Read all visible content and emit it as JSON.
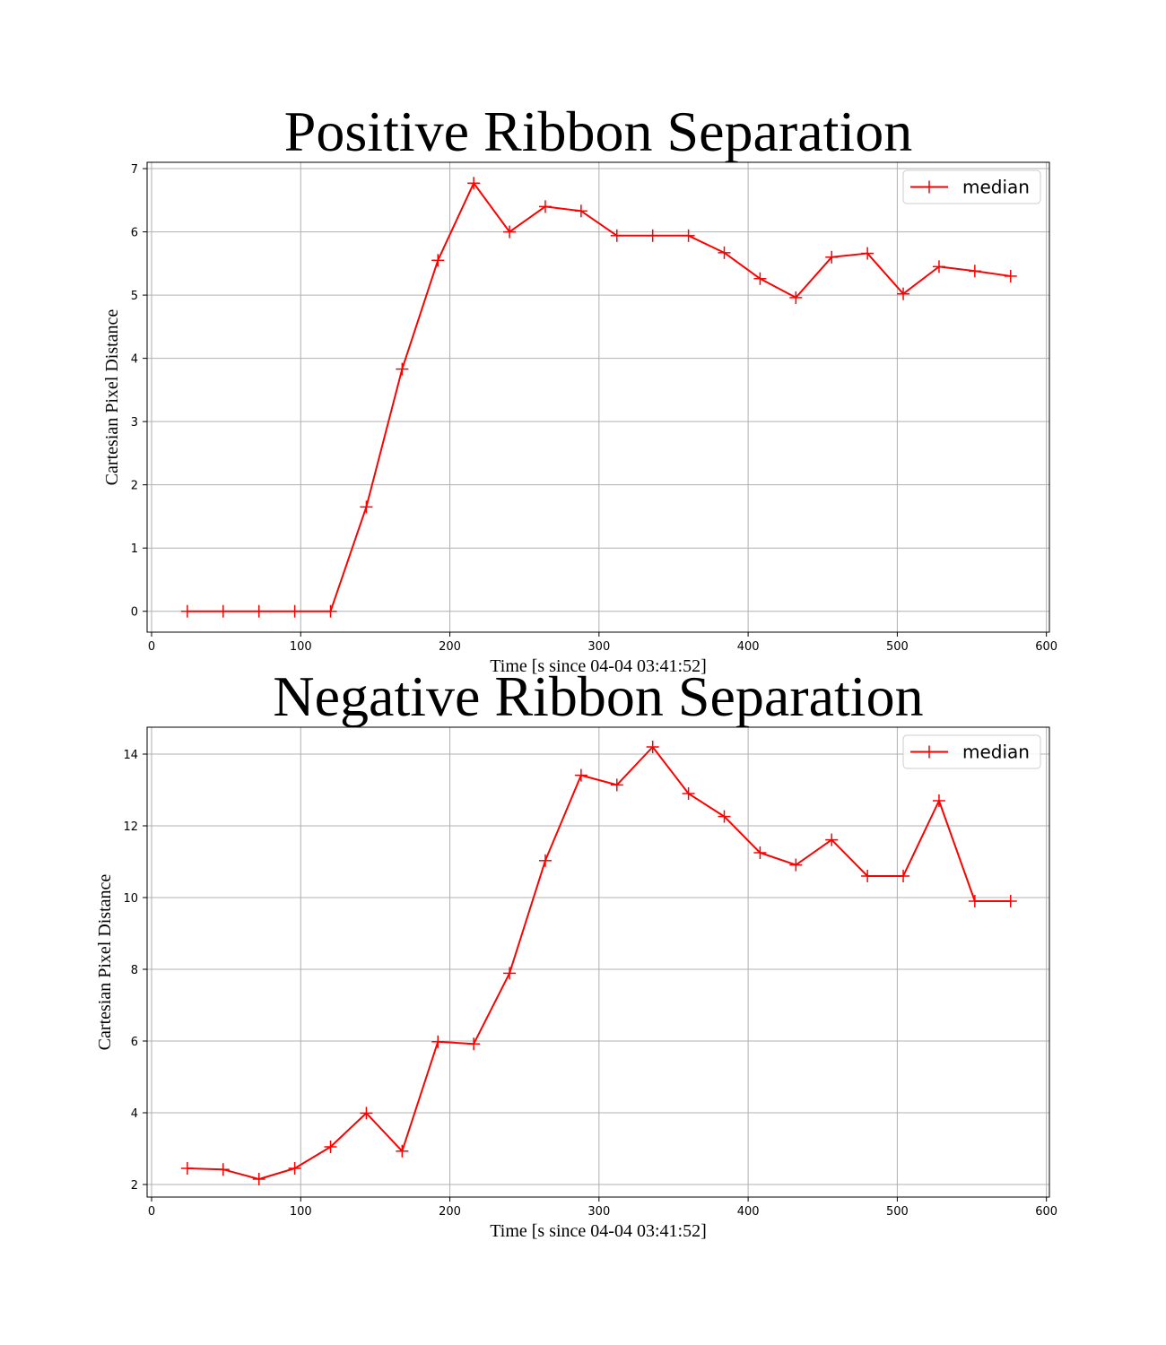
{
  "chart_data": [
    {
      "type": "line",
      "title": "Positive Ribbon Separation",
      "xlabel": "Time [s since 04-04 03:41:52]",
      "ylabel": "Cartesian Pixel Distance",
      "xlim": [
        -3,
        602
      ],
      "ylim": [
        -0.33,
        7.1
      ],
      "xticks": [
        0,
        100,
        200,
        300,
        400,
        500,
        600
      ],
      "yticks": [
        0,
        1,
        2,
        3,
        4,
        5,
        6,
        7
      ],
      "grid": true,
      "legend_position": "top-right",
      "series": [
        {
          "name": "median",
          "color": "#ff0000",
          "marker": "plus",
          "x": [
            24,
            48,
            72,
            96,
            120,
            144,
            168,
            192,
            216,
            240,
            264,
            288,
            312,
            336,
            360,
            384,
            408,
            432,
            456,
            480,
            504,
            528,
            552,
            576
          ],
          "y": [
            0,
            0,
            0,
            0,
            0,
            1.65,
            3.83,
            5.55,
            6.77,
            6.0,
            6.4,
            6.33,
            5.94,
            5.94,
            5.94,
            5.67,
            5.26,
            4.96,
            5.6,
            5.66,
            5.02,
            5.45,
            5.38,
            5.3
          ]
        }
      ]
    },
    {
      "type": "line",
      "title": "Negative Ribbon Separation",
      "xlabel": "Time [s since 04-04 03:41:52]",
      "ylabel": "Cartesian Pixel Distance",
      "xlim": [
        -3,
        602
      ],
      "ylim": [
        1.65,
        14.75
      ],
      "xticks": [
        0,
        100,
        200,
        300,
        400,
        500,
        600
      ],
      "yticks": [
        2,
        4,
        6,
        8,
        10,
        12,
        14
      ],
      "grid": true,
      "legend_position": "top-right",
      "series": [
        {
          "name": "median",
          "color": "#ff0000",
          "marker": "plus",
          "x": [
            24,
            48,
            72,
            96,
            120,
            144,
            168,
            192,
            216,
            240,
            264,
            288,
            312,
            336,
            360,
            384,
            408,
            432,
            456,
            480,
            504,
            528,
            552,
            576
          ],
          "y": [
            2.45,
            2.42,
            2.15,
            2.45,
            3.05,
            3.99,
            2.93,
            5.98,
            5.92,
            7.89,
            11.03,
            13.41,
            13.14,
            14.2,
            12.9,
            12.26,
            11.25,
            10.91,
            11.61,
            10.6,
            10.6,
            12.7,
            9.9,
            9.9
          ]
        }
      ]
    }
  ]
}
